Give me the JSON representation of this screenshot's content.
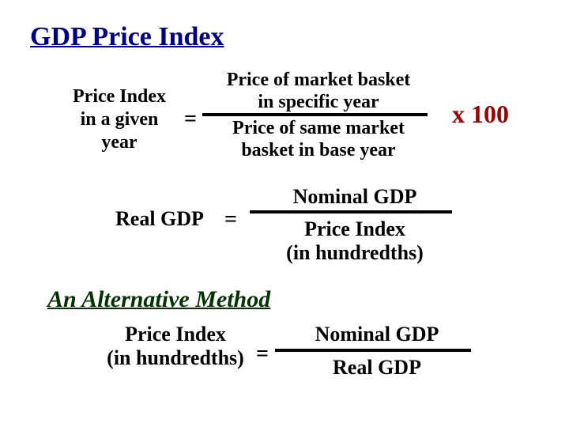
{
  "title": "GDP Price Index",
  "colors": {
    "title": "#000080",
    "text": "#000000",
    "multiplier": "#990000",
    "subheading": "#003300",
    "bar": "#000000",
    "background": "#ffffff"
  },
  "formula1": {
    "left_line1": "Price Index",
    "left_line2": "in a given",
    "left_line3": "year",
    "equals": "=",
    "num_line1": "Price of market basket",
    "num_line2": "in specific year",
    "den_line1": "Price of same market",
    "den_line2": "basket in base year",
    "multiplier": "x 100"
  },
  "formula2": {
    "left": "Real GDP",
    "equals": "=",
    "numerator": "Nominal GDP",
    "den_line1": "Price Index",
    "den_line2": "(in hundredths)"
  },
  "subheading": "An Alternative Method",
  "formula3": {
    "left_line1": "Price Index",
    "left_line2": "(in hundredths)",
    "equals": "=",
    "numerator": "Nominal GDP",
    "denominator": "Real GDP"
  },
  "typography": {
    "title_fontsize": 34,
    "body_fontsize": 26,
    "subheading_fontsize": 30,
    "multiplier_fontsize": 32,
    "font_family": "Times New Roman"
  }
}
